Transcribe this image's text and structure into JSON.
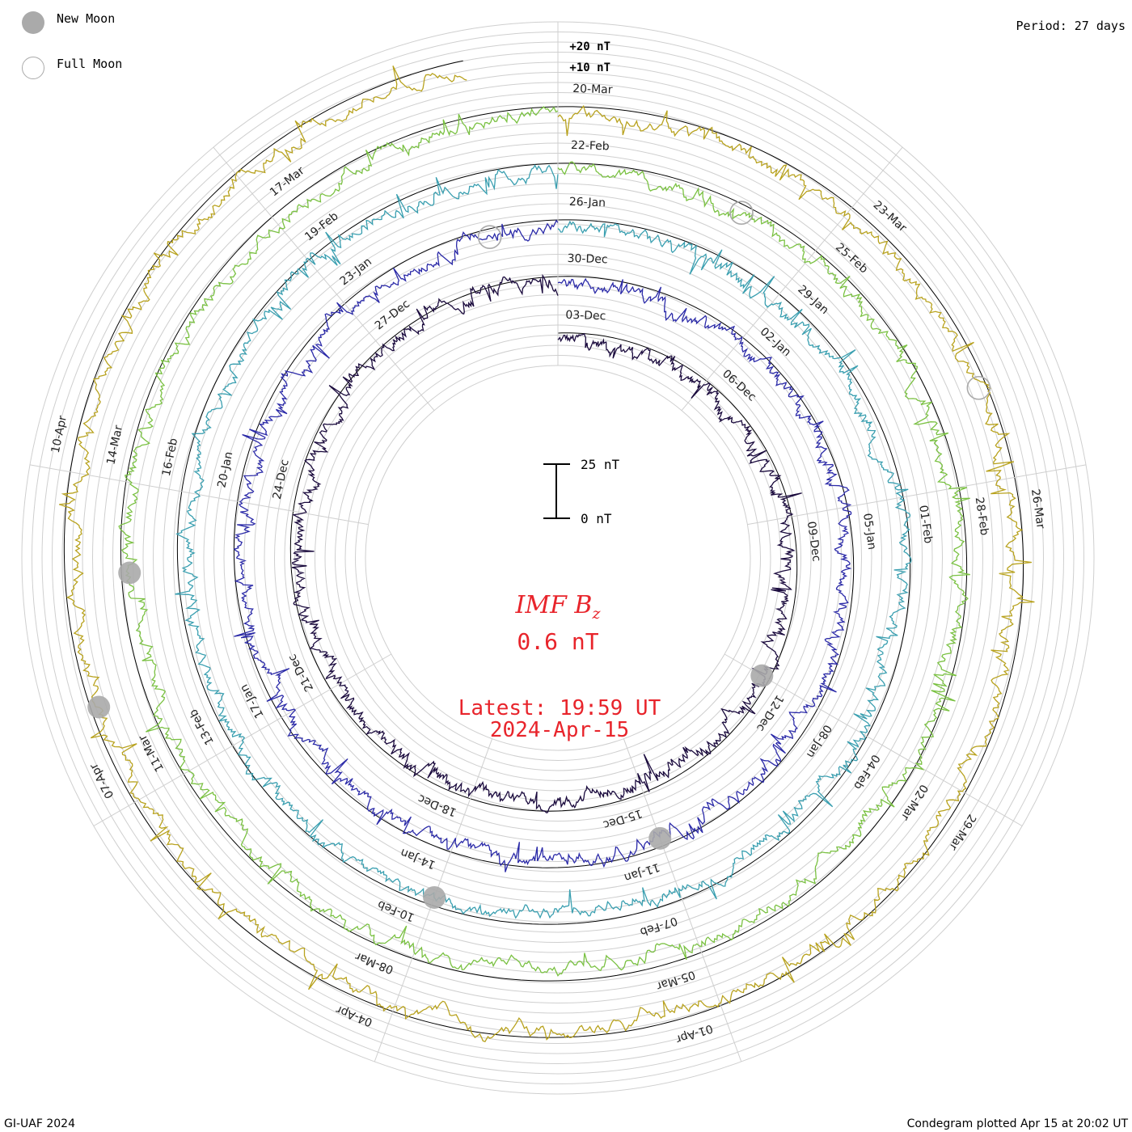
{
  "legend": {
    "new_moon": "New Moon",
    "full_moon": "Full Moon",
    "new_moon_color": "#aaaaaa"
  },
  "period_label": "Period: 27 days",
  "credit": "GI-UAF 2024",
  "footer": "Condegram plotted Apr 15 at 20:02 UT",
  "center": {
    "quantity": "IMF B",
    "subscript": "z",
    "value_text": "0.6 nT",
    "latest_label": "Latest: 19:59 UT",
    "latest_date": "2024-Apr-15",
    "color": "#e8242b"
  },
  "scale": {
    "ring_labels": [
      "+20 nT",
      "+10 nT"
    ],
    "bar_top": "25 nT",
    "bar_bottom": "0 nT"
  },
  "chart_data": {
    "type": "line",
    "title": "IMF Bz",
    "units": "nT",
    "latest_value": 0.6,
    "period_days": 27,
    "rotations": [
      {
        "index": 0,
        "color": "#1a0a3d",
        "date_labels": [
          "03-Dec",
          "06-Dec",
          "09-Dec",
          "12-Dec",
          "15-Dec",
          "18-Dec",
          "21-Dec",
          "24-Dec",
          "27-Dec"
        ]
      },
      {
        "index": 1,
        "color": "#2b2aa8",
        "date_labels": [
          "30-Dec",
          "02-Jan",
          "05-Jan",
          "08-Jan",
          "11-Jan",
          "14-Jan",
          "17-Jan",
          "20-Jan",
          "23-Jan"
        ]
      },
      {
        "index": 2,
        "color": "#3a9fb0",
        "date_labels": [
          "26-Jan",
          "29-Jan",
          "01-Feb",
          "04-Feb",
          "07-Feb",
          "10-Feb",
          "13-Feb",
          "16-Feb",
          "19-Feb"
        ]
      },
      {
        "index": 3,
        "color": "#7ac142",
        "date_labels": [
          "22-Feb",
          "25-Feb",
          "28-Feb",
          "02-Mar",
          "05-Mar",
          "08-Mar",
          "11-Mar",
          "14-Mar",
          "17-Mar"
        ]
      },
      {
        "index": 4,
        "color": "#b8a21e",
        "date_labels": [
          "20-Mar",
          "23-Mar",
          "26-Mar",
          "29-Mar",
          "01-Apr",
          "04-Apr",
          "07-Apr",
          "10-Apr"
        ]
      }
    ],
    "moon_phases": [
      {
        "type": "new",
        "date": "11-Jan"
      },
      {
        "type": "new",
        "date": "10-Feb"
      },
      {
        "type": "new",
        "date": "10-Mar"
      },
      {
        "type": "new",
        "date": "08-Apr"
      },
      {
        "type": "new",
        "date": "12-Dec"
      },
      {
        "type": "full",
        "date": "25-Jan"
      },
      {
        "type": "full",
        "date": "24-Feb"
      },
      {
        "type": "full",
        "date": "25-Mar"
      }
    ],
    "legend_placement": "top-left",
    "grid": true
  }
}
